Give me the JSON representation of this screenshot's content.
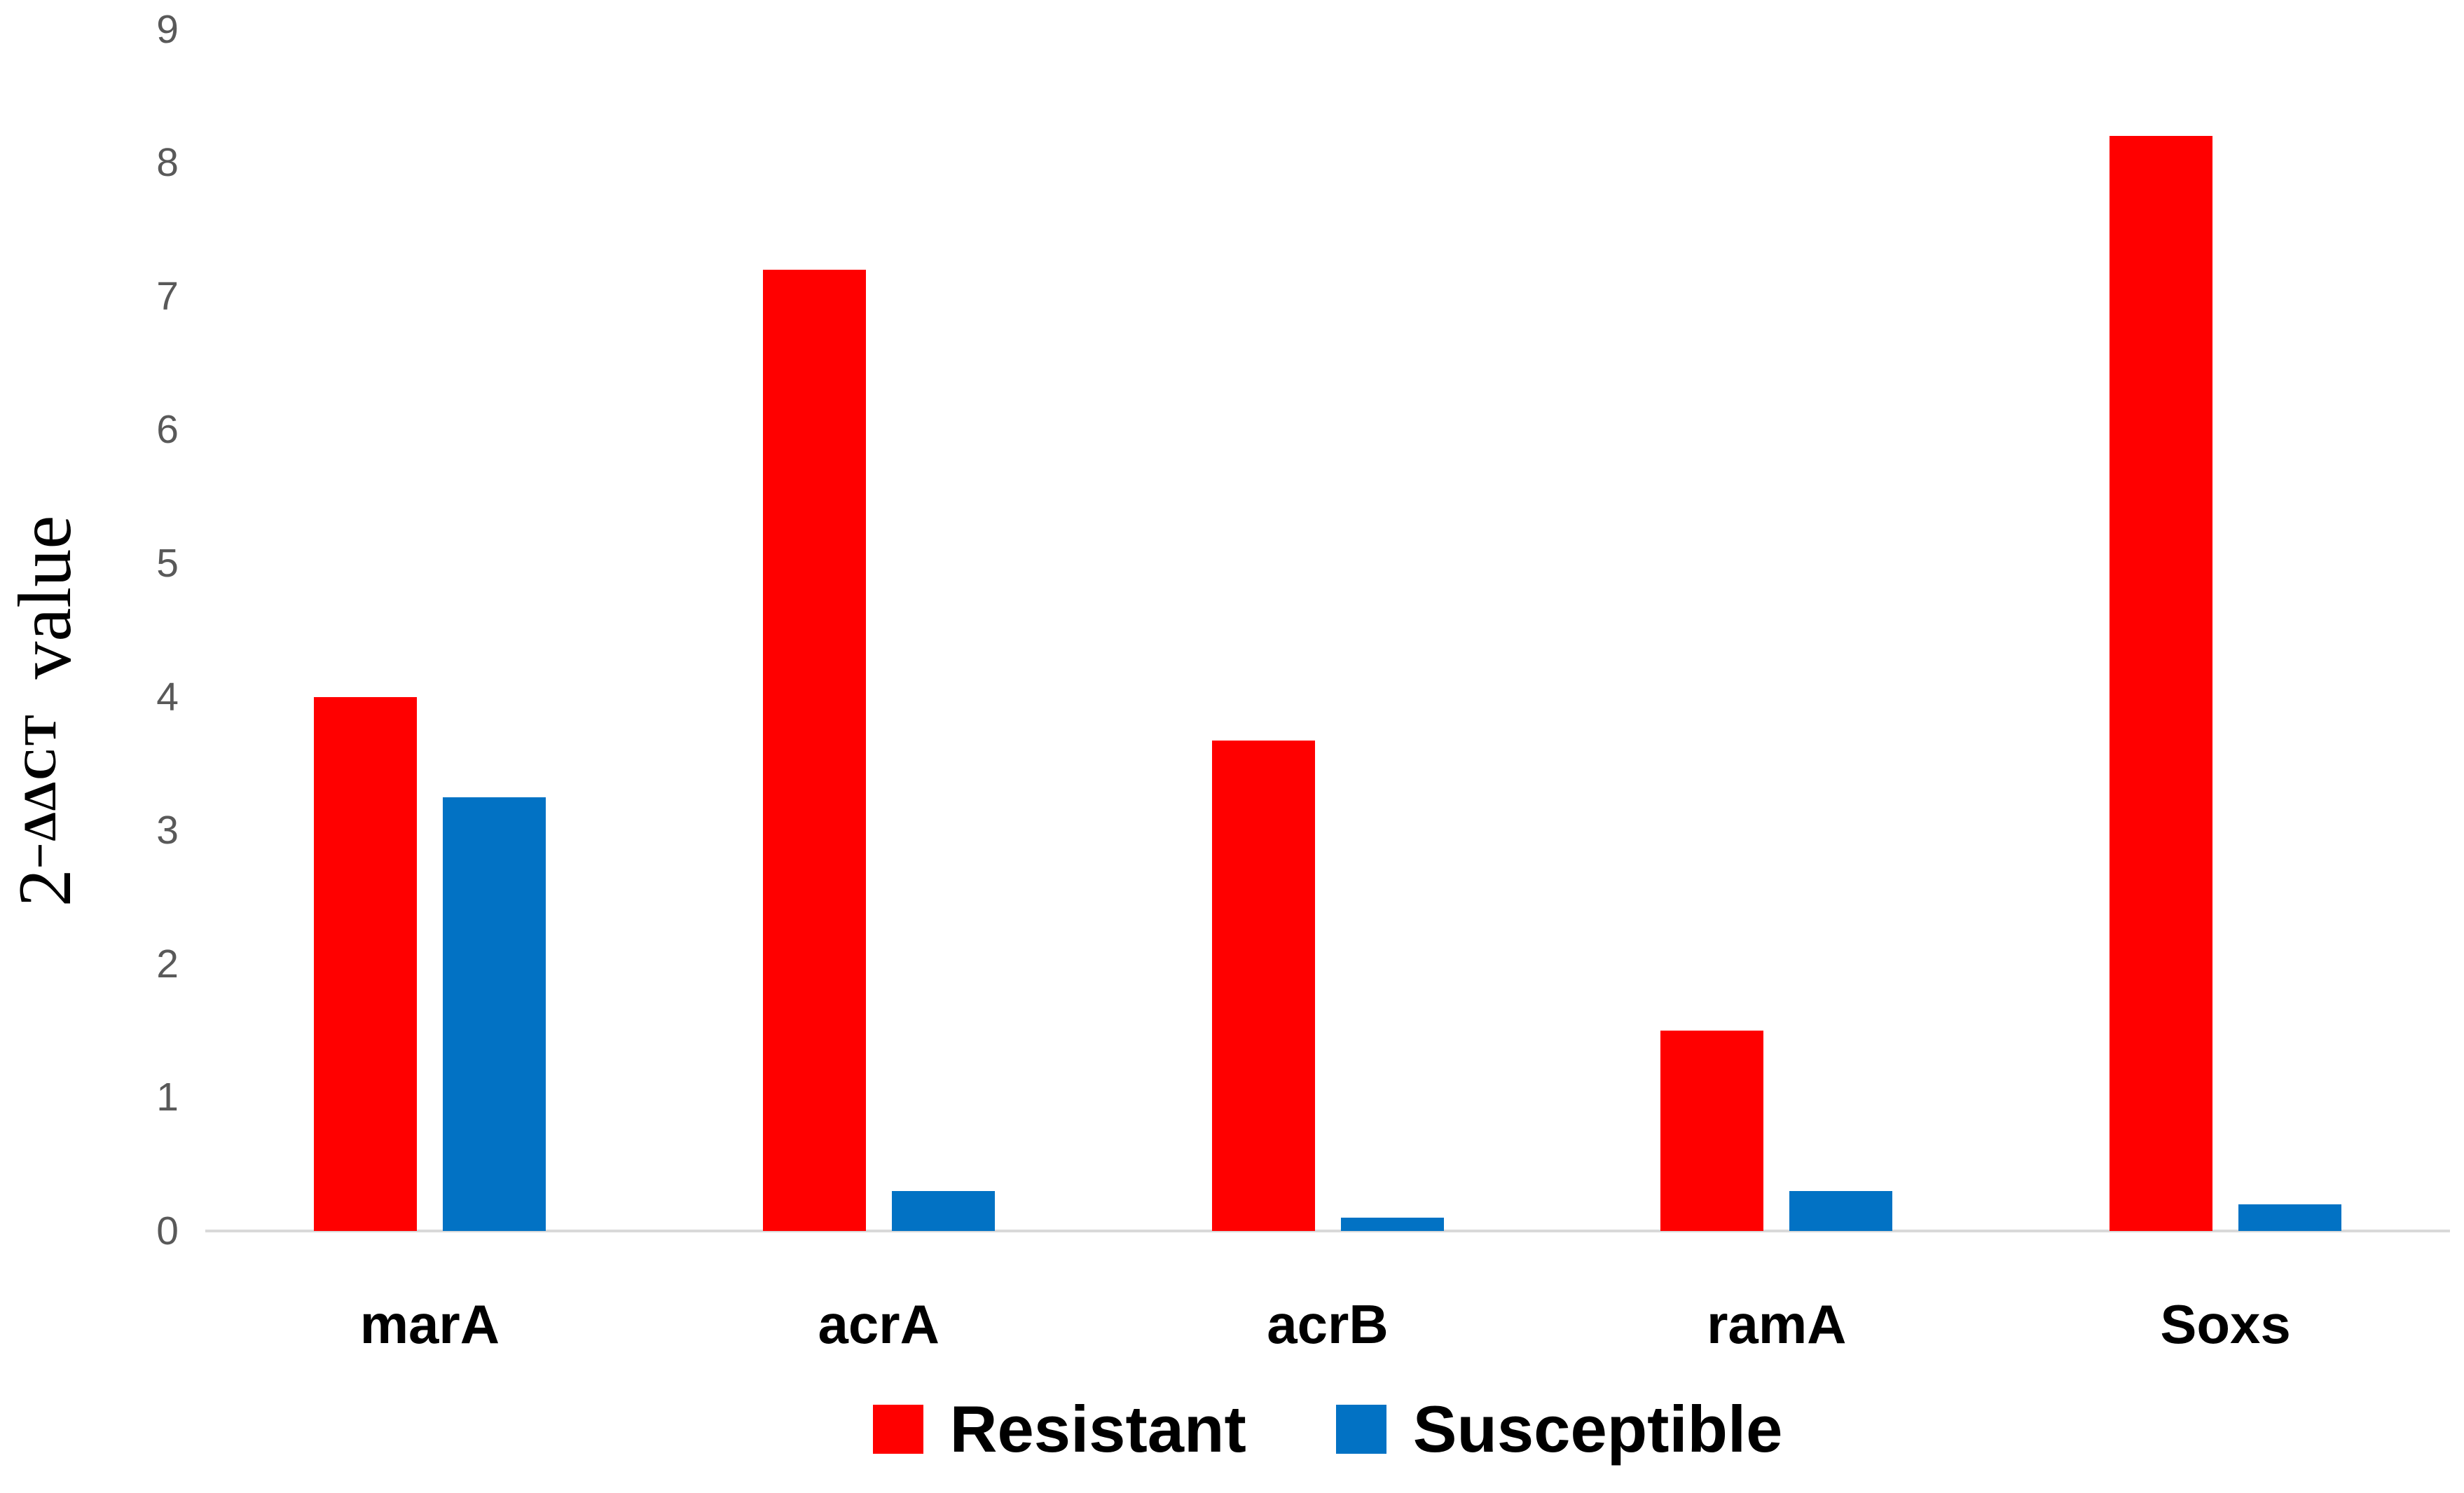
{
  "chart_data": {
    "type": "bar",
    "title": "",
    "categories": [
      "marA",
      "acrA",
      "acrB",
      "ramA",
      "Soxs"
    ],
    "series": [
      {
        "name": "Resistant",
        "color": "#FF0000",
        "values": [
          4.0,
          7.2,
          3.67,
          1.5,
          8.2
        ]
      },
      {
        "name": "Susceptible",
        "color": "#0272C4",
        "values": [
          3.25,
          0.3,
          0.1,
          0.3,
          0.2
        ]
      }
    ],
    "ylabel": {
      "base": "2",
      "superscript": "−ΔΔCT",
      "rest": "value"
    },
    "xlabel": "",
    "yticks": [
      0,
      1,
      2,
      3,
      4,
      5,
      6,
      7,
      8,
      9
    ],
    "ylim": [
      0,
      9
    ],
    "grid": false,
    "legend_position": "bottom",
    "axis_line_color": "#D9D9D9",
    "tick_label_color": "#595959"
  }
}
